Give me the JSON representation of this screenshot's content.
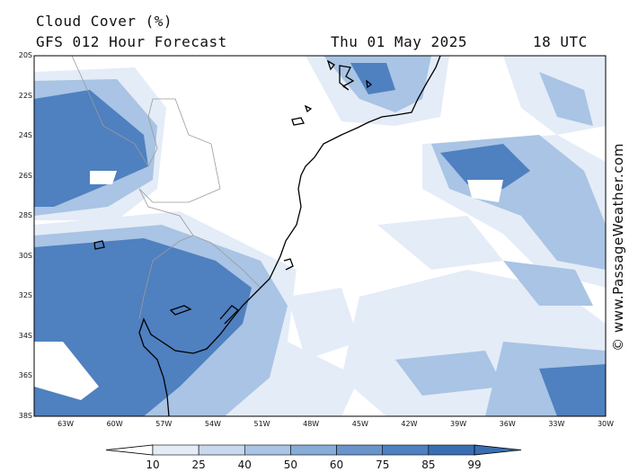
{
  "header": {
    "title": "Cloud Cover (%)",
    "subtitle": "GFS 012 Hour Forecast",
    "date": "Thu 01 May 2025",
    "time": "18 UTC"
  },
  "credit": "© www.PassageWeather.com",
  "axes": {
    "latitude_labels": [
      "20S",
      "22S",
      "24S",
      "26S",
      "28S",
      "30S",
      "32S",
      "34S",
      "36S",
      "38S"
    ],
    "longitude_labels": [
      "63W",
      "60W",
      "57W",
      "54W",
      "51W",
      "48W",
      "45W",
      "42W",
      "39W",
      "36W",
      "33W",
      "30W"
    ]
  },
  "colorbar": {
    "labels": [
      "10",
      "25",
      "40",
      "50",
      "60",
      "75",
      "85",
      "99"
    ],
    "colors": [
      "#ffffff",
      "#e4ecf7",
      "#c8d9ee",
      "#a9c4e4",
      "#88acd8",
      "#6a95cc",
      "#4f80c0",
      "#3a6eb2"
    ]
  },
  "colors": {
    "c10": "#ffffff",
    "c25": "#e4ecf7",
    "c40": "#c8d9ee",
    "c50": "#a9c4e4",
    "c60": "#88acd8",
    "c75": "#6a95cc",
    "c85": "#4f80c0",
    "c99": "#3a6eb2",
    "coast": "#000000",
    "border": "#9a9a9a"
  }
}
